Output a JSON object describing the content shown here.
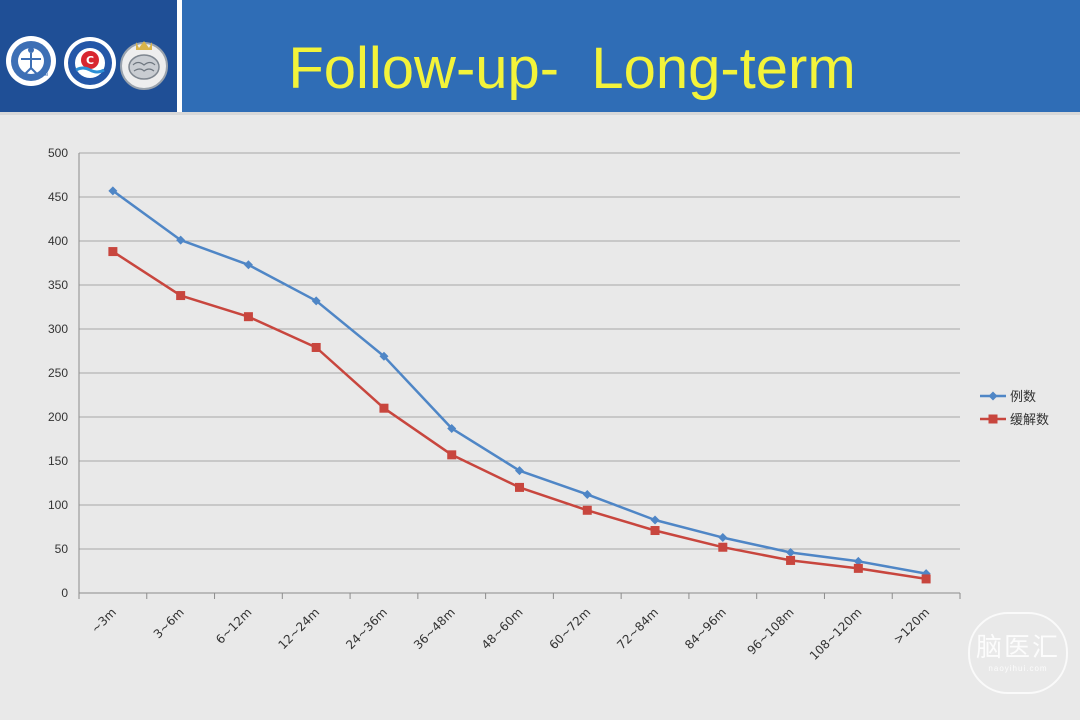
{
  "slide": {
    "title": "Follow-up-  Long-term",
    "logos": [
      {
        "name": "university-emblem",
        "text": "福"
      },
      {
        "name": "society-emblem",
        "text": "C"
      },
      {
        "name": "brain-emblem",
        "text": ""
      }
    ],
    "watermark": {
      "main": "脑医汇",
      "sub": "naoyihui.com"
    },
    "colors": {
      "header": "#2f6db6",
      "logo_panel": "#1f4f96",
      "title": "#f3f33a",
      "background": "#e9e9e9",
      "series_1": "#4f86c6",
      "series_2": "#c8463e"
    }
  },
  "chart_data": {
    "type": "line",
    "categories": [
      "~3m",
      "3~6m",
      "6~12m",
      "12~24m",
      "24~36m",
      "36~48m",
      "48~60m",
      "60~72m",
      "72~84m",
      "84~96m",
      "96~108m",
      "108~120m",
      ">120m"
    ],
    "series": [
      {
        "name": "例数",
        "marker": "diamond",
        "color": "#4f86c6",
        "values": [
          457,
          401,
          373,
          332,
          269,
          187,
          139,
          112,
          83,
          63,
          46,
          36,
          22
        ]
      },
      {
        "name": "缓解数",
        "marker": "square",
        "color": "#c8463e",
        "values": [
          388,
          338,
          314,
          279,
          210,
          157,
          120,
          94,
          71,
          52,
          37,
          28,
          16
        ]
      }
    ],
    "yticks": [
      0,
      50,
      100,
      150,
      200,
      250,
      300,
      350,
      400,
      450,
      500
    ],
    "ylim": [
      0,
      500
    ],
    "grid": "horizontal",
    "legend": "right"
  }
}
